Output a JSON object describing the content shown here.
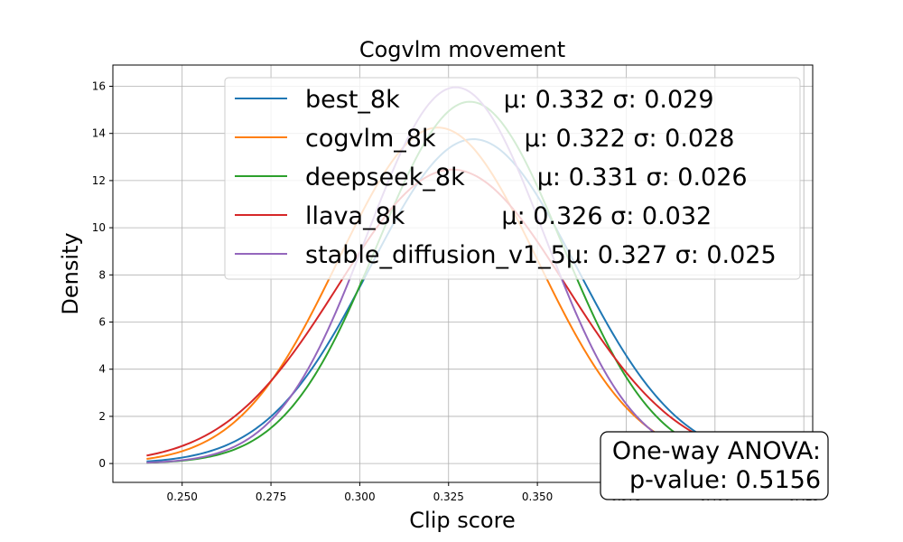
{
  "chart_data": {
    "type": "line",
    "title": "Cogvlm movement",
    "xlabel": "Clip score",
    "ylabel": "Density",
    "xlim": [
      0.2305,
      0.4275
    ],
    "ylim": [
      -0.8,
      16.9
    ],
    "xticks": [
      0.25,
      0.275,
      0.3,
      0.325,
      0.35,
      0.375,
      0.4,
      0.425
    ],
    "xtick_labels": [
      "0.250",
      "0.275",
      "0.300",
      "0.325",
      "0.350",
      "0.375",
      "0.400",
      "0.425"
    ],
    "yticks": [
      0,
      2,
      4,
      6,
      8,
      10,
      12,
      14,
      16
    ],
    "ytick_labels": [
      "0",
      "2",
      "4",
      "6",
      "8",
      "10",
      "12",
      "14",
      "16"
    ],
    "grid": true,
    "x_range": [
      0.24,
      0.42
    ],
    "legend_position": "top-right",
    "series": [
      {
        "name": "best_8k",
        "stats": "μ: 0.332 σ: 0.029",
        "mu": 0.332,
        "sigma": 0.029,
        "color": "#1f77b4"
      },
      {
        "name": "cogvlm_8k",
        "stats": "μ: 0.322 σ: 0.028",
        "mu": 0.322,
        "sigma": 0.028,
        "color": "#ff7f0e"
      },
      {
        "name": "deepseek_8k",
        "stats": "μ: 0.331 σ: 0.026",
        "mu": 0.331,
        "sigma": 0.026,
        "color": "#2ca02c"
      },
      {
        "name": "llava_8k",
        "stats": "μ: 0.326 σ: 0.032",
        "mu": 0.326,
        "sigma": 0.032,
        "color": "#d62728"
      },
      {
        "name": "stable_diffusion_v1_5",
        "stats": "μ: 0.327 σ: 0.025",
        "mu": 0.327,
        "sigma": 0.025,
        "color": "#9467bd"
      }
    ],
    "annotation": {
      "line1": "One-way ANOVA:",
      "line2": "p-value: 0.5156"
    }
  }
}
